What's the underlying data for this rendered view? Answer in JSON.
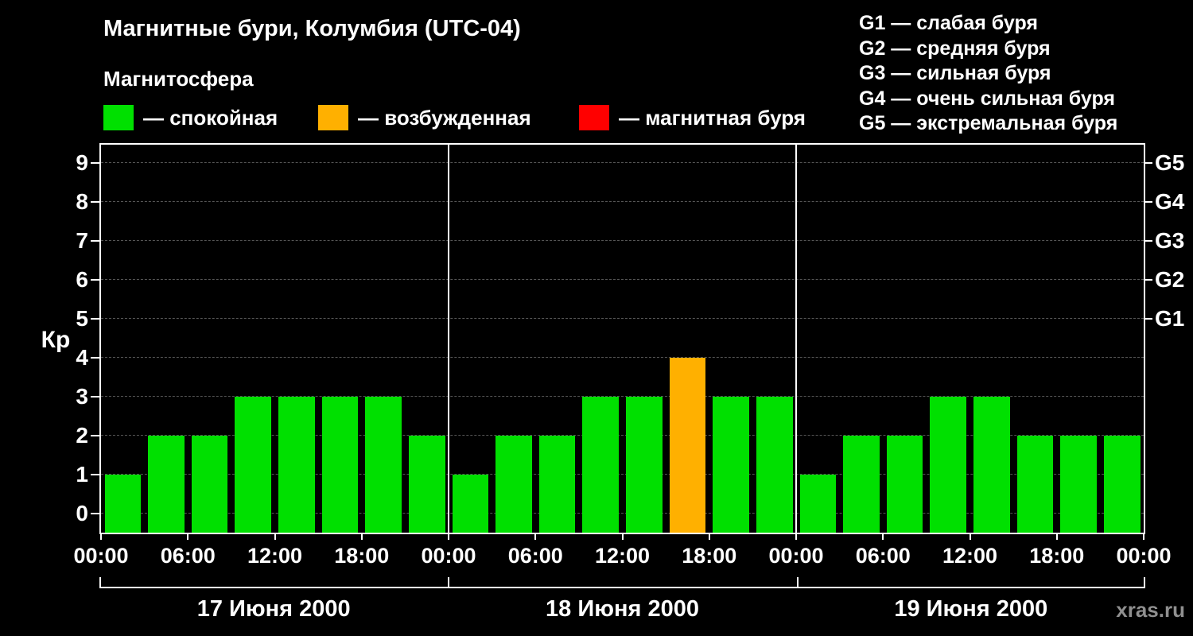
{
  "header": {
    "title": "Магнитные бури, Колумбия (UTC-04)",
    "subtitle": "Магнитосфера",
    "legend": [
      {
        "name": "quiet",
        "label": "— спокойная",
        "color": "#00e000"
      },
      {
        "name": "excited",
        "label": "— возбужденная",
        "color": "#ffb000"
      },
      {
        "name": "storm",
        "label": "— магнитная буря",
        "color": "#ff0000"
      }
    ],
    "storm_scale": [
      "G1 — слабая буря",
      "G2 — средняя буря",
      "G3 — сильная буря",
      "G4 — очень сильная буря",
      "G5 — экстремальная буря"
    ]
  },
  "watermark": "xras.ru",
  "chart_data": {
    "type": "bar",
    "title": "Магнитные бури, Колумбия (UTC-04)",
    "ylabel": "Кр",
    "ylim": [
      -0.5,
      9.5
    ],
    "yticks": [
      0,
      1,
      2,
      3,
      4,
      5,
      6,
      7,
      8,
      9
    ],
    "right_axis": [
      {
        "kp": 5,
        "label": "G1"
      },
      {
        "kp": 6,
        "label": "G2"
      },
      {
        "kp": 7,
        "label": "G3"
      },
      {
        "kp": 8,
        "label": "G4"
      },
      {
        "kp": 9,
        "label": "G5"
      }
    ],
    "x_tick_labels": [
      "00:00",
      "06:00",
      "12:00",
      "18:00",
      "00:00",
      "06:00",
      "12:00",
      "18:00",
      "00:00",
      "06:00",
      "12:00",
      "18:00",
      "00:00"
    ],
    "bar_interval_hours": 3,
    "days": [
      {
        "date": "17 Июня 2000",
        "values": [
          1,
          2,
          2,
          3,
          3,
          3,
          3,
          2
        ]
      },
      {
        "date": "18 Июня 2000",
        "values": [
          1,
          2,
          2,
          3,
          3,
          4,
          3,
          3
        ]
      },
      {
        "date": "19 Июня 2000",
        "values": [
          1,
          2,
          2,
          3,
          3,
          2,
          2,
          2
        ]
      }
    ],
    "color_rules": {
      "quiet_max": 3,
      "excited_max": 4,
      "quiet": "#00e000",
      "excited": "#ffb000",
      "storm": "#ff0000"
    },
    "grid": "horizontal-dashed",
    "legend_position": "top"
  }
}
